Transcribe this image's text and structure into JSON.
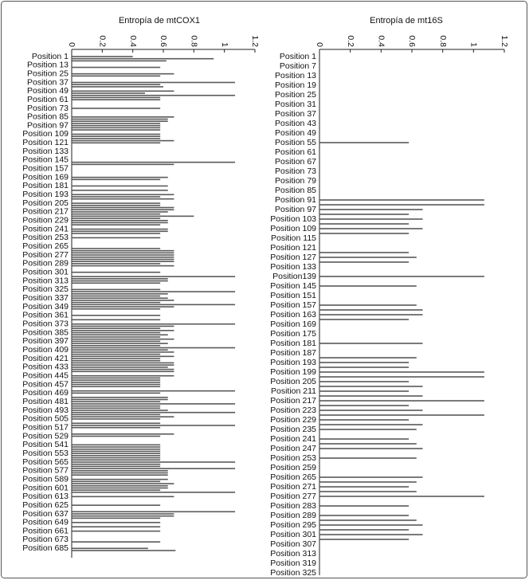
{
  "chart_data": [
    {
      "type": "barh",
      "title": "Entropía de mtCOX1",
      "color": "#5a5a5a",
      "xlim": [
        0,
        1.2
      ],
      "xticks": [
        0,
        0.2,
        0.4,
        0.6,
        0.8,
        1,
        1.2
      ],
      "categories": [
        "Position 1",
        null,
        null,
        null,
        "Position 13",
        null,
        null,
        null,
        "Position 25",
        null,
        null,
        null,
        "Position 37",
        null,
        null,
        null,
        "Position 49",
        null,
        null,
        null,
        "Position 61",
        null,
        null,
        null,
        "Position 73",
        null,
        null,
        null,
        "Position 85",
        null,
        null,
        null,
        "Position 97",
        null,
        null,
        null,
        "Position 109",
        null,
        null,
        null,
        "Position 121",
        null,
        null,
        null,
        "Position 133",
        null,
        null,
        null,
        "Position 145",
        null,
        null,
        null,
        "Position 157",
        null,
        null,
        null,
        "Position 169",
        null,
        null,
        null,
        "Position 181",
        null,
        null,
        null,
        "Position 193",
        null,
        null,
        null,
        "Position 205",
        null,
        null,
        null,
        "Position 217",
        null,
        null,
        null,
        "Position 229",
        null,
        null,
        null,
        "Position 241",
        null,
        null,
        null,
        "Position 253",
        null,
        null,
        null,
        "Position 265",
        null,
        null,
        null,
        "Position 277",
        null,
        null,
        null,
        "Position 289",
        null,
        null,
        null,
        "Position 301",
        null,
        null,
        null,
        "Position 313",
        null,
        null,
        null,
        "Position 325",
        null,
        null,
        null,
        "Position 337",
        null,
        null,
        null,
        "Position 349",
        null,
        null,
        null,
        "Position 361",
        null,
        null,
        null,
        "Position 373",
        null,
        null,
        null,
        "Position 385",
        null,
        null,
        null,
        "Position 397",
        null,
        null,
        null,
        "Position 409",
        null,
        null,
        null,
        "Position 421",
        null,
        null,
        null,
        "Position 433",
        null,
        null,
        null,
        "Position 445",
        null,
        null,
        null,
        "Position 457",
        null,
        null,
        null,
        "Position 469",
        null,
        null,
        null,
        "Position 481",
        null,
        null,
        null,
        "Position 493",
        null,
        null,
        null,
        "Position 505",
        null,
        null,
        null,
        "Position 517",
        null,
        null,
        null,
        "Position 529",
        null,
        null,
        null,
        "Position 541",
        null,
        null,
        null,
        "Position 553",
        null,
        null,
        null,
        "Position 565",
        null,
        null,
        null,
        "Position 577",
        null,
        null,
        null,
        "Position 589",
        null,
        null,
        null,
        "Position 601",
        null,
        null,
        null,
        "Position 613",
        null,
        null,
        null,
        "Position 625",
        null,
        null,
        null,
        "Position 637",
        null,
        null,
        null,
        "Position 649",
        null,
        null,
        null,
        "Position 661",
        null,
        null,
        null,
        "Position 673",
        null,
        null,
        null,
        "Position 685",
        null
      ],
      "values": [
        0.4,
        0.93,
        0.62,
        0,
        0,
        0.58,
        0,
        0,
        0.67,
        0.58,
        0,
        0,
        1.07,
        0.58,
        0.6,
        0,
        0.67,
        0.48,
        1.07,
        0.58,
        0.58,
        0,
        0,
        0,
        0.58,
        0,
        0,
        0,
        0.67,
        0.63,
        0.63,
        0.58,
        0.58,
        0.58,
        0.58,
        0,
        0.58,
        0.58,
        0.58,
        0.67,
        0.58,
        0,
        0,
        0,
        0,
        0,
        0,
        0,
        0,
        1.07,
        0.67,
        0,
        0,
        0,
        0,
        0,
        0.63,
        0.58,
        0,
        0,
        0.63,
        0,
        0.63,
        0,
        0.67,
        0.58,
        0.67,
        0,
        0.58,
        0.58,
        0.67,
        0.67,
        0.63,
        0.58,
        0.8,
        0.58,
        0.63,
        0.63,
        0.58,
        0,
        0.63,
        0.63,
        0.58,
        0,
        0.58,
        0,
        0,
        0,
        0,
        0.58,
        0.67,
        0.67,
        0.67,
        0.67,
        0.67,
        0.67,
        0.58,
        0.67,
        0,
        0,
        0.58,
        0,
        1.07,
        0.63,
        0.63,
        0.58,
        0,
        0,
        0.58,
        1.07,
        0.63,
        0.58,
        0.63,
        0.67,
        0.58,
        1.07,
        0.67,
        0.58,
        0,
        0,
        0.58,
        0,
        0.58,
        0,
        1.07,
        0.67,
        0.58,
        0.67,
        0.58,
        0.63,
        0.58,
        0.67,
        0.58,
        0.63,
        0.58,
        1.07,
        0.63,
        0.67,
        0.58,
        0.67,
        0.58,
        0.58,
        0.67,
        0.67,
        0.63,
        0.67,
        0.67,
        0,
        0.67,
        0.58,
        0.58,
        0.58,
        0.58,
        0.58,
        0,
        1.07,
        0.58,
        0,
        0.63,
        0.63,
        0.58,
        1.07,
        0.58,
        0.58,
        0.63,
        1.07,
        0.58,
        0.67,
        0.58,
        0,
        0.58,
        1.07,
        0.58,
        0,
        0,
        0.67,
        0.58,
        0,
        0,
        0,
        0.58,
        0.58,
        0.58,
        0.58,
        0.58,
        0.58,
        0.58,
        0.58,
        1.07,
        0.58,
        0.58,
        1.07,
        0.63,
        0.63,
        0.63,
        0,
        0.63,
        0.58,
        0.67,
        0.63,
        0.63,
        0.58,
        1.07,
        0,
        0.67,
        0,
        0,
        0,
        0.58,
        0,
        0,
        1.07,
        0.67,
        0.67,
        0.58,
        0,
        0.58,
        0,
        0.58,
        0,
        0.58,
        0,
        0,
        0,
        0,
        0.58,
        0,
        0,
        0.5,
        0.68
      ]
    },
    {
      "type": "barh",
      "title": "Entropía de mt16S",
      "color": "#5a5a5a",
      "xlim": [
        0,
        1.2
      ],
      "xticks": [
        0,
        0.2,
        0.4,
        0.6,
        0.8,
        1,
        1.2
      ],
      "categories": [
        "Position 1",
        null,
        "Position 7",
        null,
        "Position 13",
        null,
        "Position 19",
        null,
        "Position 25",
        null,
        "Position 31",
        null,
        "Position 37",
        null,
        "Position 43",
        null,
        "Position 49",
        null,
        "Position 55",
        null,
        "Position 61",
        null,
        "Position 67",
        null,
        "Position 73",
        null,
        "Position 79",
        null,
        "Position 85",
        null,
        "Position 91",
        null,
        "Position 97",
        null,
        "Position 103",
        null,
        "Position 109",
        null,
        "Position 115",
        null,
        "Position 121",
        null,
        "Position 127",
        null,
        "Position 133",
        null,
        "Position139",
        null,
        "Position 145",
        null,
        "Position 151",
        null,
        "Position 157",
        null,
        "Position 163",
        null,
        "Position 169",
        null,
        "Position 175",
        null,
        "Position 181",
        null,
        "Position 187",
        null,
        "Position 193",
        null,
        "Position 199",
        null,
        "Position 205",
        null,
        "Position 211",
        null,
        "Position 217",
        null,
        "Position 223",
        null,
        "Position 229",
        null,
        "Position 235",
        null,
        "Position 241",
        null,
        "Position 247",
        null,
        "Position 253",
        null,
        "Position 259",
        null,
        "Position 265",
        null,
        "Position 271",
        null,
        "Position 277",
        null,
        "Position 283",
        null,
        "Position 289",
        null,
        "Position 295",
        null,
        "Position 301",
        null,
        "Position 307",
        null,
        "Position 313",
        null,
        "Position 319",
        null,
        "Position 325"
      ],
      "values": [
        0,
        0,
        0,
        0,
        0,
        0,
        0,
        0,
        0,
        0,
        0,
        0,
        0,
        0,
        0,
        0,
        0,
        0,
        0.58,
        0,
        0,
        0,
        0,
        0,
        0,
        0,
        0,
        0,
        0,
        0,
        1.07,
        1.07,
        0.67,
        0.58,
        0.67,
        0.58,
        0.67,
        0.58,
        0,
        0,
        0,
        0.58,
        0.63,
        0.58,
        0,
        0,
        1.07,
        0,
        0.63,
        0,
        0,
        0,
        0.63,
        0.67,
        0.67,
        0.58,
        0,
        0,
        0,
        0,
        0.67,
        0,
        0,
        0.63,
        0.58,
        0.58,
        1.07,
        1.07,
        0.58,
        0.67,
        0.58,
        0.67,
        1.07,
        0.58,
        0.67,
        1.07,
        0.58,
        0.67,
        0.63,
        0,
        0.58,
        0.63,
        0.67,
        0,
        0.63,
        0,
        0,
        0,
        0.67,
        0.63,
        0.58,
        0.63,
        1.07,
        0,
        0.58,
        0,
        0.58,
        0.63,
        0.67,
        0.58,
        0.67,
        0.58,
        0,
        0,
        0,
        0,
        0,
        0,
        0
      ]
    }
  ]
}
